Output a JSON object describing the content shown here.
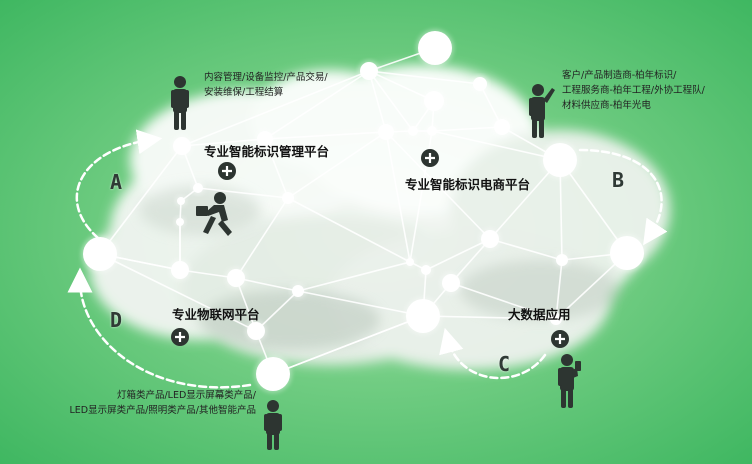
{
  "platforms": {
    "mgmt": "专业智能标识管理平台",
    "ecom": "专业智能标识电商平台",
    "iot": "专业物联网平台",
    "bigdata": "大数据应用"
  },
  "descriptions": {
    "top_left": [
      "内容管理/设备监控/产品交易/",
      "安装维保/工程结算"
    ],
    "top_right": [
      "客户/产品制造商-柏年标识/",
      "工程服务商-柏年工程/外协工程队/",
      "材料供应商-柏年光电"
    ],
    "bottom_left": [
      "灯箱类产品/LED显示屏幕类产品/",
      "LED显示屏类产品/照明类产品/其他智能产品"
    ]
  },
  "letters": {
    "a": "A",
    "b": "B",
    "c": "C",
    "d": "D"
  },
  "colors": {
    "background": "#3fb761",
    "node": "#ffffff",
    "figure": "#2d3531"
  }
}
